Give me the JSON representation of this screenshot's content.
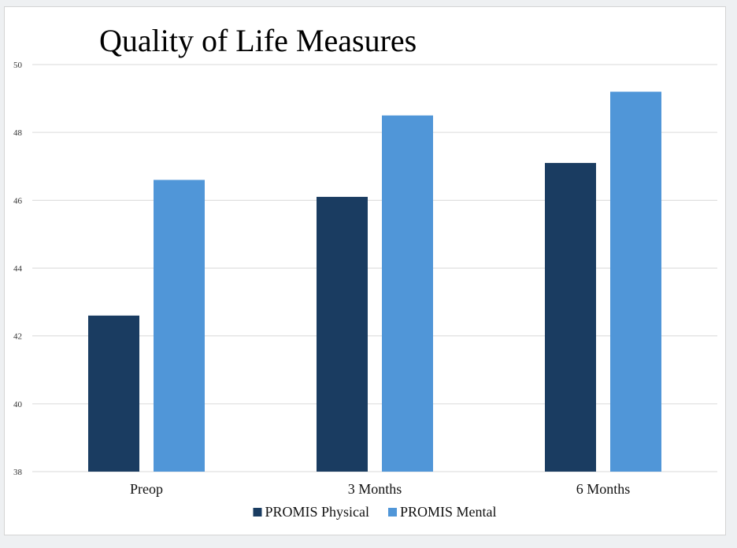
{
  "chart_data": {
    "type": "bar",
    "title": "Quality of Life Measures",
    "xlabel": "",
    "ylabel": "",
    "categories": [
      "Preop",
      "3 Months",
      "6 Months"
    ],
    "series": [
      {
        "name": "PROMIS Physical",
        "color": "#1a3c61",
        "values": [
          42.6,
          46.1,
          47.1
        ]
      },
      {
        "name": "PROMIS Mental",
        "color": "#5096d8",
        "values": [
          46.6,
          48.5,
          49.2
        ]
      }
    ],
    "ylim": [
      38,
      50
    ],
    "yticks": [
      "38",
      "40",
      "42",
      "44",
      "46",
      "48",
      "50"
    ],
    "grid": true,
    "legend_position": "bottom"
  }
}
